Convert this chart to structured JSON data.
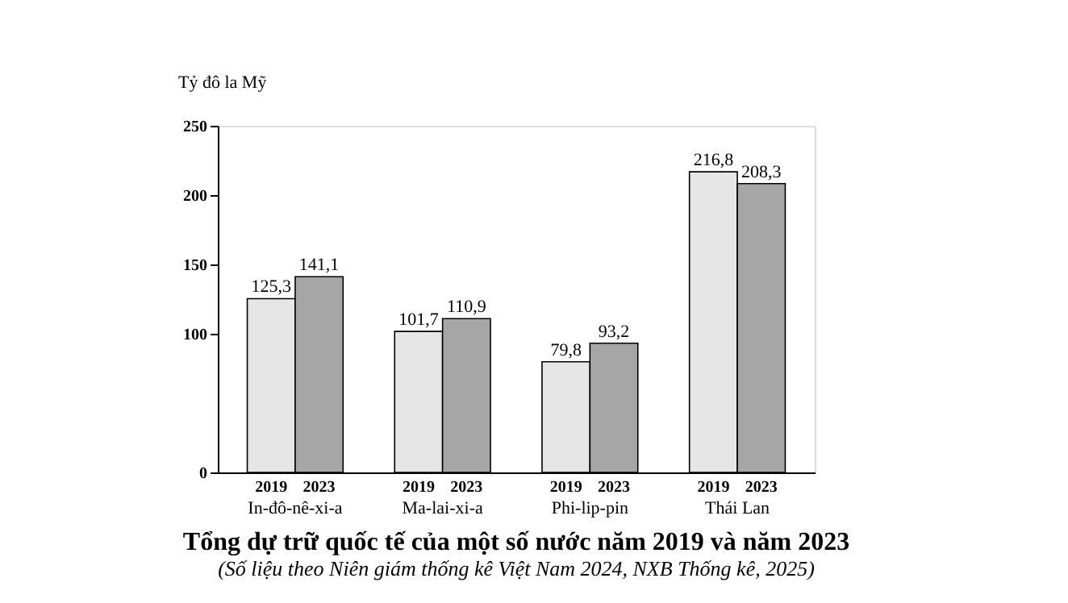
{
  "chart_data": {
    "type": "bar",
    "title": "Tổng dự trữ quốc tế của một số nước năm 2019 và năm 2023",
    "subtitle": "(Số liệu theo Niên giám thống kê Việt Nam 2024, NXB Thống kê, 2025)",
    "ylabel": "Tỷ đô la Mỹ",
    "categories": [
      "In-đô-nê-xi-a",
      "Ma-lai-xi-a",
      "Phi-lip-pin",
      "Thái Lan"
    ],
    "series": [
      {
        "name": "2019",
        "color": "#e6e6e6",
        "values": [
          125.3,
          101.7,
          79.8,
          216.8
        ],
        "value_labels": [
          "125,3",
          "101,7",
          "79,8",
          "216,8"
        ]
      },
      {
        "name": "2023",
        "color": "#a6a6a6",
        "values": [
          141.1,
          110.9,
          93.2,
          208.3
        ],
        "value_labels": [
          "141,1",
          "110,9",
          "93,2",
          "208,3"
        ]
      }
    ],
    "ylim": [
      0,
      250
    ],
    "yticks": [
      0,
      100,
      150,
      200,
      250
    ],
    "grid": false,
    "legend": false
  }
}
